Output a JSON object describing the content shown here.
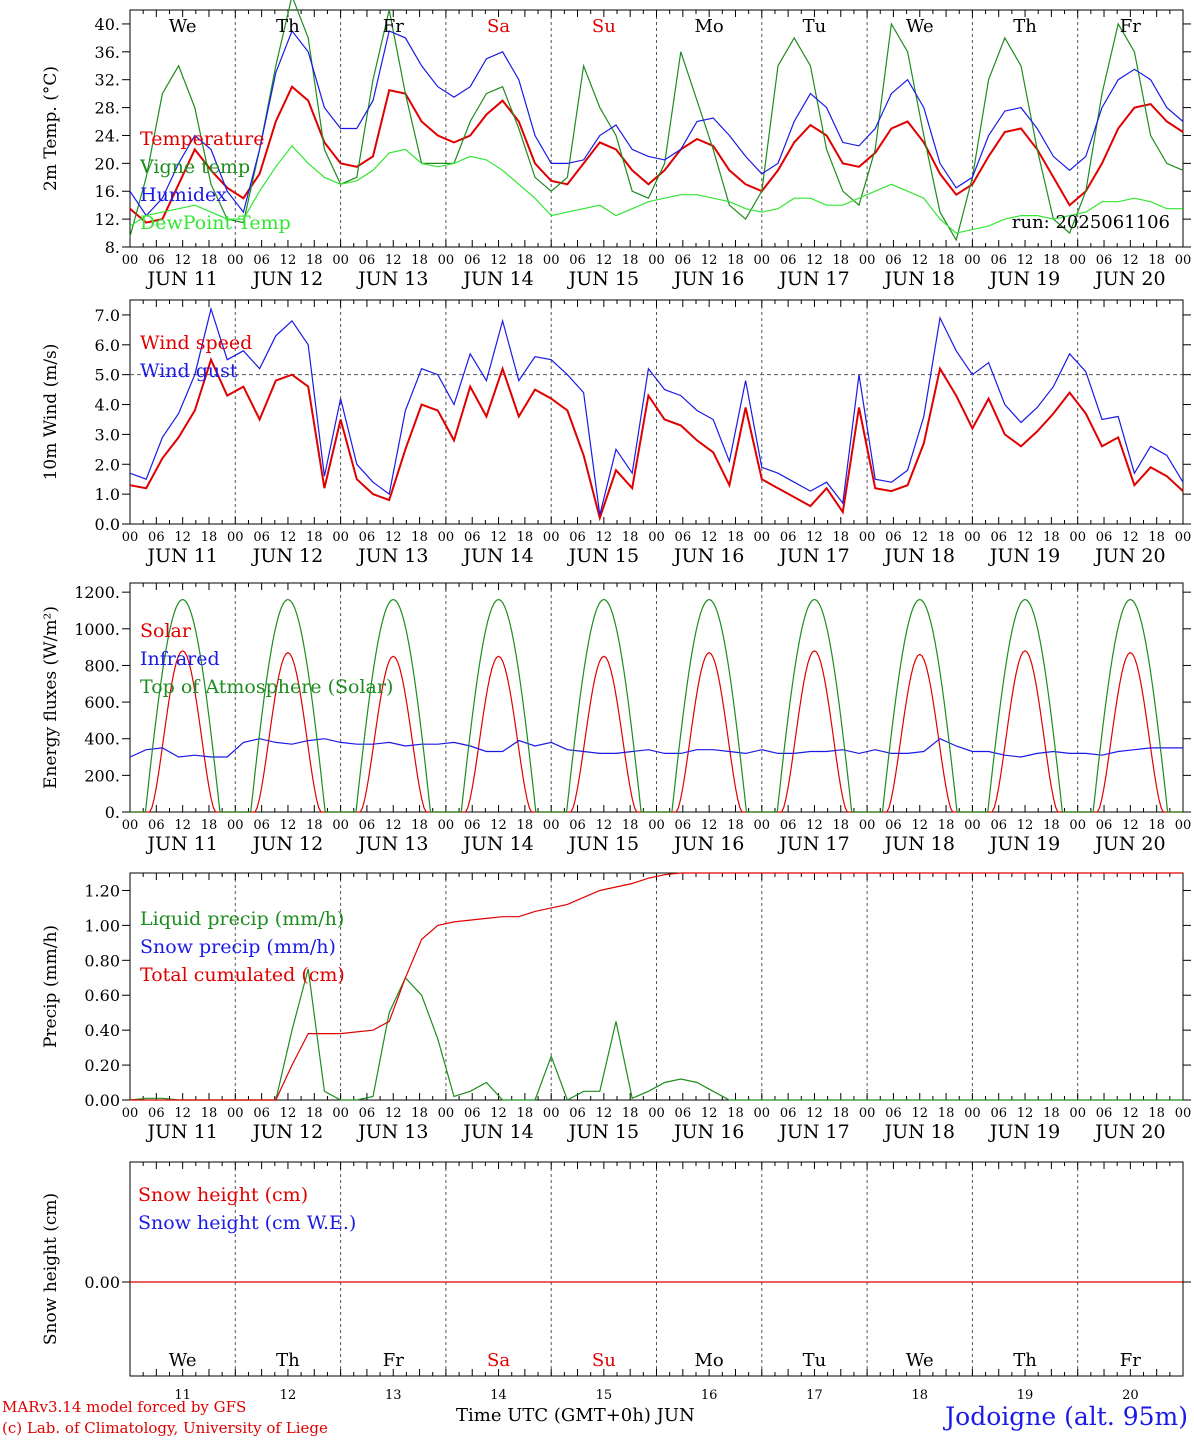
{
  "days": [
    "We",
    "Th",
    "Fr",
    "Sa",
    "Su",
    "Mo",
    "Tu",
    "We",
    "Th",
    "Fr"
  ],
  "weekend_days": [
    "Sa",
    "Su"
  ],
  "dates": [
    "JUN 11",
    "JUN 12",
    "JUN 13",
    "JUN 14",
    "JUN 15",
    "JUN 16",
    "JUN 17",
    "JUN 18",
    "JUN 19",
    "JUN 20"
  ],
  "day_numbers": [
    "11",
    "12",
    "13",
    "14",
    "15",
    "16",
    "17",
    "18",
    "19",
    "20"
  ],
  "hour_labels": [
    "00",
    "06",
    "12",
    "18"
  ],
  "end_hour_label": "00",
  "run_label": "run: 2025061106",
  "credit_line1": "MARv3.14 model forced by GFS",
  "credit_line2": "(c) Lab. of Climatology, University of Liege",
  "xaxis_title": "Time UTC (GMT+0h)",
  "xaxis_month": "JUN",
  "station": "Jodoigne (alt. 95m)",
  "colors": {
    "red": "#e00000",
    "blue": "#1a1ae6",
    "green": "#1e8c1e",
    "lightgreen": "#33e633",
    "grid": "#555555"
  },
  "chart_data": [
    {
      "type": "line",
      "ylabel": "2m Temp. (°C)",
      "ylim": [
        8,
        42
      ],
      "yticks": [
        "8.",
        "12.",
        "16.",
        "20.",
        "24.",
        "28.",
        "32.",
        "36.",
        "40."
      ],
      "tick_values": [
        8,
        12,
        16,
        20,
        24,
        28,
        32,
        36,
        40
      ],
      "series": [
        {
          "name": "Temperature",
          "color": "red",
          "values": [
            13.5,
            11.5,
            12,
            17,
            22,
            19,
            16.5,
            15,
            18.5,
            26,
            31,
            29,
            23,
            20,
            19.5,
            21,
            30.5,
            30,
            26,
            24,
            23,
            24,
            27,
            29,
            26,
            20,
            17.5,
            17,
            20,
            23,
            22,
            19,
            17,
            19,
            22,
            23.5,
            22.5,
            19,
            17,
            16,
            19,
            23,
            25.5,
            24,
            20,
            19.5,
            21.5,
            25,
            26,
            23,
            18.5,
            15.5,
            17,
            21,
            24.5,
            25,
            22,
            18,
            14,
            16,
            20,
            25,
            28,
            28.5,
            26,
            24.5
          ]
        },
        {
          "name": "Vigne temp",
          "color": "green",
          "values": [
            9.5,
            18,
            30,
            34,
            28,
            17,
            12,
            11.5,
            22,
            34,
            44,
            38,
            22,
            17,
            18,
            32,
            42,
            30,
            20,
            20,
            20,
            26,
            30,
            31,
            25,
            18,
            16,
            18,
            34,
            28,
            24,
            16,
            15,
            20,
            36,
            29,
            22,
            14,
            12,
            16,
            34,
            38,
            34,
            22,
            16,
            14,
            22,
            40,
            36,
            24,
            13,
            9,
            18,
            32,
            38,
            34,
            22,
            12,
            10,
            16,
            30,
            40,
            36,
            24,
            20,
            19
          ]
        },
        {
          "name": "Humidex",
          "color": "blue",
          "values": [
            16,
            12.5,
            15,
            20,
            24,
            22,
            16,
            13,
            22,
            33,
            39,
            36,
            28,
            25,
            25,
            29,
            39,
            38,
            34,
            31,
            29.5,
            31,
            35,
            36,
            32,
            24,
            20,
            20,
            20.5,
            24,
            25.5,
            22,
            21,
            20.5,
            22,
            26,
            26.5,
            24,
            21,
            18.5,
            20,
            26,
            30,
            28,
            23,
            22.5,
            25,
            30,
            32,
            28,
            20,
            16.5,
            18,
            24,
            27.5,
            28,
            25,
            21,
            19,
            21,
            28,
            32,
            33.5,
            32,
            28,
            26
          ]
        },
        {
          "name": "DewPoint Temp",
          "color": "lightgreen",
          "values": [
            11,
            12.5,
            13,
            13.5,
            14,
            13,
            12,
            12,
            16,
            19.5,
            22.5,
            20,
            18,
            17,
            17.5,
            19,
            21.5,
            22,
            20,
            19.5,
            20,
            21,
            20.5,
            19,
            17,
            15,
            12.5,
            13,
            13.5,
            14,
            12.5,
            13.5,
            14.5,
            15,
            15.5,
            15.5,
            15,
            14.5,
            13.5,
            13,
            13.5,
            15,
            15,
            14,
            14,
            15,
            16,
            17,
            16,
            15,
            12,
            10,
            10.5,
            11,
            12,
            12.5,
            12.5,
            12,
            12.5,
            13,
            14.5,
            14.5,
            15,
            14.5,
            13.5,
            13.5
          ]
        }
      ]
    },
    {
      "type": "line",
      "ylabel": "10m Wind (m/s)",
      "ylim": [
        0,
        7.5
      ],
      "yticks": [
        "0.0",
        "1.0",
        "2.0",
        "3.0",
        "4.0",
        "5.0",
        "6.0",
        "7.0"
      ],
      "tick_values": [
        0,
        1,
        2,
        3,
        4,
        5,
        6,
        7
      ],
      "reference_line": 5.0,
      "series": [
        {
          "name": "Wind speed",
          "color": "red",
          "values": [
            1.3,
            1.2,
            2.2,
            2.9,
            3.8,
            5.5,
            4.3,
            4.6,
            3.5,
            4.8,
            5.0,
            4.6,
            1.2,
            3.5,
            1.5,
            1.0,
            0.8,
            2.5,
            4.0,
            3.8,
            2.8,
            4.6,
            3.6,
            5.2,
            3.6,
            4.5,
            4.2,
            3.8,
            2.3,
            0.2,
            1.8,
            1.2,
            4.3,
            3.5,
            3.3,
            2.8,
            2.4,
            1.3,
            3.9,
            1.5,
            1.2,
            0.9,
            0.6,
            1.2,
            0.4,
            3.9,
            1.2,
            1.1,
            1.3,
            2.7,
            5.2,
            4.3,
            3.2,
            4.2,
            3.0,
            2.6,
            3.1,
            3.7,
            4.4,
            3.7,
            2.6,
            2.9,
            1.3,
            1.9,
            1.6,
            1.1
          ]
        },
        {
          "name": "Wind gust",
          "color": "blue",
          "values": [
            1.7,
            1.5,
            2.9,
            3.7,
            5.0,
            7.2,
            5.5,
            5.8,
            5.2,
            6.3,
            6.8,
            6.0,
            1.6,
            4.2,
            2.0,
            1.4,
            1.0,
            3.8,
            5.2,
            5.0,
            4.0,
            5.7,
            4.8,
            6.8,
            4.8,
            5.6,
            5.5,
            5.0,
            4.4,
            0.3,
            2.5,
            1.7,
            5.2,
            4.5,
            4.3,
            3.8,
            3.5,
            2.1,
            4.8,
            1.9,
            1.7,
            1.4,
            1.1,
            1.4,
            0.7,
            5.0,
            1.5,
            1.4,
            1.8,
            3.6,
            6.9,
            5.8,
            5.0,
            5.4,
            4.0,
            3.4,
            3.9,
            4.6,
            5.7,
            5.1,
            3.5,
            3.6,
            1.7,
            2.6,
            2.3,
            1.4
          ]
        }
      ]
    },
    {
      "type": "line",
      "ylabel": "Energy fluxes (W/m²)",
      "ylim": [
        0,
        1250
      ],
      "yticks": [
        "0.",
        "200.",
        "400.",
        "600.",
        "800.",
        "1000.",
        "1200."
      ],
      "tick_values": [
        0,
        200,
        400,
        600,
        800,
        1000,
        1200
      ],
      "series": [
        {
          "name": "Solar",
          "color": "red",
          "peaks": [
            880,
            870,
            850,
            850,
            850,
            870,
            880,
            860,
            880,
            870
          ]
        },
        {
          "name": "Infrared",
          "color": "blue",
          "values": [
            300,
            340,
            350,
            300,
            310,
            300,
            300,
            380,
            400,
            380,
            370,
            390,
            400,
            380,
            370,
            370,
            380,
            360,
            370,
            370,
            380,
            360,
            330,
            330,
            390,
            360,
            380,
            340,
            330,
            320,
            320,
            330,
            340,
            320,
            320,
            340,
            340,
            330,
            320,
            340,
            320,
            320,
            330,
            330,
            340,
            320,
            340,
            320,
            320,
            330,
            400,
            360,
            330,
            330,
            310,
            300,
            320,
            330,
            320,
            320,
            310,
            330,
            340,
            350,
            350,
            350
          ]
        },
        {
          "name": "Top of Atmosphere (Solar)",
          "color": "green",
          "peak": 1160
        }
      ]
    },
    {
      "type": "line",
      "ylabel": "Precip (mm/h)",
      "ylim": [
        0,
        1.3
      ],
      "yticks": [
        "0.00",
        "0.20",
        "0.40",
        "0.60",
        "0.80",
        "1.00",
        "1.20"
      ],
      "tick_values": [
        0,
        0.2,
        0.4,
        0.6,
        0.8,
        1.0,
        1.2
      ],
      "series": [
        {
          "name": "Liquid precip (mm/h)",
          "color": "green",
          "values": [
            0,
            0.01,
            0.01,
            0,
            0,
            0,
            0,
            0,
            0,
            0,
            0.4,
            0.75,
            0.05,
            0,
            0,
            0.02,
            0.5,
            0.7,
            0.6,
            0.35,
            0.02,
            0.05,
            0.1,
            0,
            0,
            0,
            0.25,
            0,
            0.05,
            0.05,
            0.45,
            0.01,
            0.05,
            0.1,
            0.12,
            0.1,
            0.05,
            0,
            0,
            0,
            0,
            0,
            0,
            0,
            0,
            0,
            0,
            0,
            0,
            0,
            0,
            0,
            0,
            0,
            0,
            0,
            0,
            0,
            0,
            0,
            0,
            0,
            0,
            0,
            0,
            0
          ]
        },
        {
          "name": "Snow precip (mm/h)",
          "color": "blue",
          "values": []
        },
        {
          "name": "Total cumulated (cm)",
          "color": "red",
          "values": [
            0,
            0,
            0,
            0,
            0,
            0,
            0,
            0,
            0,
            0,
            0.2,
            0.38,
            0.38,
            0.38,
            0.39,
            0.4,
            0.45,
            0.7,
            0.92,
            1.0,
            1.02,
            1.03,
            1.04,
            1.05,
            1.05,
            1.08,
            1.1,
            1.12,
            1.16,
            1.2,
            1.22,
            1.24,
            1.27,
            1.29,
            1.3,
            1.3,
            1.3,
            1.3,
            1.3,
            1.3,
            1.3,
            1.3,
            1.3,
            1.3,
            1.3,
            1.3,
            1.3,
            1.3,
            1.3,
            1.3,
            1.3,
            1.3,
            1.3,
            1.3,
            1.3,
            1.3,
            1.3,
            1.3,
            1.3,
            1.3,
            1.3,
            1.3,
            1.3,
            1.3,
            1.3,
            1.3
          ]
        }
      ]
    },
    {
      "type": "line",
      "ylabel": "Snow height (cm)",
      "yticks": [
        "0.00"
      ],
      "tick_values": [
        0
      ],
      "series": [
        {
          "name": "Snow height (cm)",
          "color": "red",
          "values": [
            0,
            0
          ]
        },
        {
          "name": "Snow height (cm W.E.)",
          "color": "blue",
          "values": []
        }
      ]
    }
  ]
}
